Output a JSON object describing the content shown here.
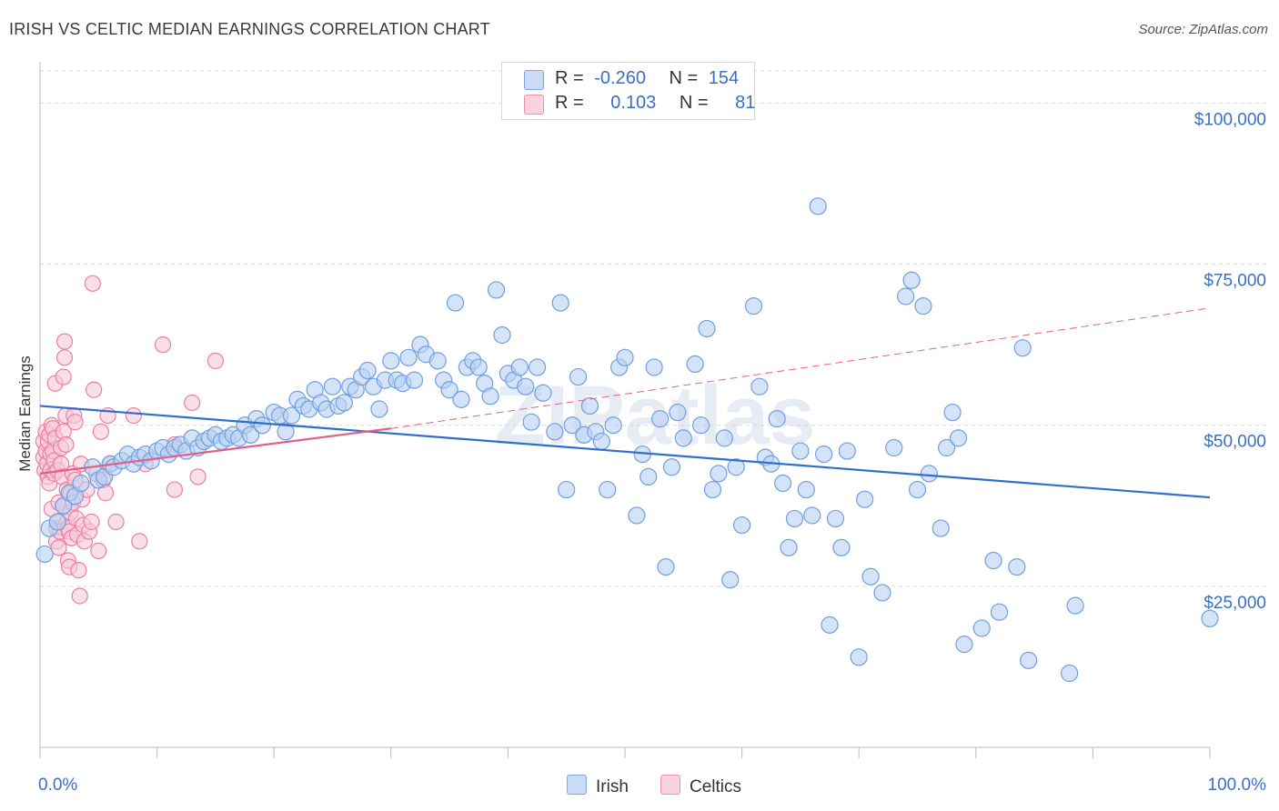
{
  "title": "IRISH VS CELTIC MEDIAN EARNINGS CORRELATION CHART",
  "source": "Source: ZipAtlas.com",
  "watermark": "ZIPatlas",
  "colors": {
    "irish": "#6f9fe0",
    "irish_fill": "#b8d0f2",
    "irish_line": "#2e6fcc",
    "celtics": "#ec7fa3",
    "celtics_fill": "#f9c9d8",
    "celtics_line": "#e0608c",
    "tick_text": "#3b6fc4",
    "grid": "#d9d9d9"
  },
  "legend": {
    "rows": [
      {
        "r_label": "R =",
        "r_value": "-0.260",
        "n_label": "N =",
        "n_value": "154"
      },
      {
        "r_label": "R =",
        "r_value": "0.103",
        "n_label": "N =",
        "n_value": "81"
      }
    ]
  },
  "bottom_legend": {
    "irish": "Irish",
    "celtics": "Celtics"
  },
  "chart_data": {
    "type": "scatter",
    "title": "IRISH VS CELTIC MEDIAN EARNINGS CORRELATION CHART",
    "xlabel": "",
    "ylabel": "Median Earnings",
    "xlim": [
      0,
      100
    ],
    "ylim": [
      0,
      105000
    ],
    "x_tick_labels": [
      "0.0%",
      "100.0%"
    ],
    "y_ticks": [
      25000,
      50000,
      75000,
      100000
    ],
    "y_tick_labels": [
      "$25,000",
      "$50,000",
      "$75,000",
      "$100,000"
    ],
    "grid": true,
    "legend_position": "top-center",
    "series": [
      {
        "name": "Irish",
        "r": -0.26,
        "n": 154,
        "trend": {
          "x": [
            0,
            100
          ],
          "y": [
            53000,
            38800
          ]
        },
        "points": [
          [
            0.4,
            30000
          ],
          [
            0.8,
            34000
          ],
          [
            1.5,
            35000
          ],
          [
            2.0,
            37500
          ],
          [
            2.5,
            39500
          ],
          [
            3.0,
            39000
          ],
          [
            3.5,
            41000
          ],
          [
            4.5,
            43500
          ],
          [
            5.0,
            41500
          ],
          [
            5.5,
            42000
          ],
          [
            6.0,
            44000
          ],
          [
            6.3,
            43500
          ],
          [
            7.0,
            44500
          ],
          [
            7.5,
            45500
          ],
          [
            8.0,
            44000
          ],
          [
            8.5,
            45000
          ],
          [
            9.0,
            45500
          ],
          [
            9.5,
            44500
          ],
          [
            10.0,
            46000
          ],
          [
            10.5,
            46500
          ],
          [
            11.0,
            45500
          ],
          [
            11.5,
            46500
          ],
          [
            12.0,
            47000
          ],
          [
            12.5,
            46000
          ],
          [
            13.0,
            48000
          ],
          [
            13.5,
            46500
          ],
          [
            14.0,
            47500
          ],
          [
            14.5,
            48000
          ],
          [
            15.0,
            48500
          ],
          [
            15.5,
            47500
          ],
          [
            16.0,
            48000
          ],
          [
            16.5,
            48500
          ],
          [
            17.0,
            48000
          ],
          [
            17.5,
            50000
          ],
          [
            18.0,
            48500
          ],
          [
            18.5,
            51000
          ],
          [
            19.0,
            50000
          ],
          [
            20.0,
            52000
          ],
          [
            20.5,
            51500
          ],
          [
            21.0,
            49000
          ],
          [
            21.5,
            51500
          ],
          [
            22.0,
            54000
          ],
          [
            22.5,
            53000
          ],
          [
            23.0,
            52500
          ],
          [
            23.5,
            55500
          ],
          [
            24.0,
            53500
          ],
          [
            24.5,
            52500
          ],
          [
            25.0,
            56000
          ],
          [
            25.5,
            53000
          ],
          [
            26.0,
            53500
          ],
          [
            26.5,
            56000
          ],
          [
            27.0,
            55500
          ],
          [
            27.5,
            57500
          ],
          [
            28.0,
            58500
          ],
          [
            28.5,
            56000
          ],
          [
            29.0,
            52500
          ],
          [
            29.5,
            57000
          ],
          [
            30.0,
            60000
          ],
          [
            30.5,
            57000
          ],
          [
            31.0,
            56500
          ],
          [
            31.5,
            60500
          ],
          [
            32.0,
            57000
          ],
          [
            32.5,
            62500
          ],
          [
            33.0,
            61000
          ],
          [
            34.0,
            60000
          ],
          [
            34.5,
            57000
          ],
          [
            35.0,
            55500
          ],
          [
            35.5,
            69000
          ],
          [
            36.0,
            54000
          ],
          [
            36.5,
            59000
          ],
          [
            37.0,
            60000
          ],
          [
            37.5,
            59000
          ],
          [
            38.0,
            56500
          ],
          [
            38.5,
            54500
          ],
          [
            39.0,
            71000
          ],
          [
            39.5,
            64000
          ],
          [
            40.0,
            58000
          ],
          [
            40.5,
            57000
          ],
          [
            41.0,
            59000
          ],
          [
            41.5,
            56000
          ],
          [
            42.0,
            50500
          ],
          [
            42.5,
            59000
          ],
          [
            43.0,
            55000
          ],
          [
            44.0,
            49000
          ],
          [
            44.5,
            69000
          ],
          [
            45.0,
            40000
          ],
          [
            45.5,
            50000
          ],
          [
            46.0,
            57500
          ],
          [
            46.5,
            48500
          ],
          [
            47.0,
            53000
          ],
          [
            47.5,
            49000
          ],
          [
            48.0,
            47500
          ],
          [
            48.5,
            40000
          ],
          [
            49.0,
            50000
          ],
          [
            49.5,
            59000
          ],
          [
            50.0,
            60500
          ],
          [
            51.0,
            36000
          ],
          [
            51.5,
            45500
          ],
          [
            52.0,
            42000
          ],
          [
            52.5,
            59000
          ],
          [
            53.0,
            51000
          ],
          [
            53.5,
            28000
          ],
          [
            54.0,
            43500
          ],
          [
            54.5,
            52000
          ],
          [
            55.0,
            48000
          ],
          [
            56.0,
            59500
          ],
          [
            56.5,
            50000
          ],
          [
            57.0,
            65000
          ],
          [
            57.5,
            40000
          ],
          [
            58.0,
            42500
          ],
          [
            58.5,
            48000
          ],
          [
            59.0,
            26000
          ],
          [
            59.5,
            43500
          ],
          [
            60.0,
            34500
          ],
          [
            61.0,
            68500
          ],
          [
            61.5,
            56000
          ],
          [
            62.0,
            45000
          ],
          [
            62.5,
            44000
          ],
          [
            63.0,
            51000
          ],
          [
            63.5,
            41000
          ],
          [
            64.0,
            31000
          ],
          [
            64.5,
            35500
          ],
          [
            65.0,
            46000
          ],
          [
            65.5,
            40000
          ],
          [
            66.0,
            36000
          ],
          [
            66.5,
            84000
          ],
          [
            67.0,
            45500
          ],
          [
            67.5,
            19000
          ],
          [
            68.0,
            35500
          ],
          [
            68.5,
            31000
          ],
          [
            69.0,
            46000
          ],
          [
            70.0,
            14000
          ],
          [
            70.5,
            38500
          ],
          [
            71.0,
            26500
          ],
          [
            72.0,
            24000
          ],
          [
            73.0,
            46500
          ],
          [
            74.0,
            70000
          ],
          [
            74.5,
            72500
          ],
          [
            75.0,
            40000
          ],
          [
            75.5,
            68500
          ],
          [
            76.0,
            42500
          ],
          [
            77.0,
            34000
          ],
          [
            77.5,
            46500
          ],
          [
            78.0,
            52000
          ],
          [
            78.5,
            48000
          ],
          [
            79.0,
            16000
          ],
          [
            80.5,
            18500
          ],
          [
            81.5,
            29000
          ],
          [
            82.0,
            21000
          ],
          [
            83.5,
            28000
          ],
          [
            84.0,
            62000
          ],
          [
            84.5,
            13500
          ],
          [
            88.0,
            11500
          ],
          [
            88.5,
            22000
          ],
          [
            100.0,
            20000
          ]
        ]
      },
      {
        "name": "Celtics",
        "r": 0.103,
        "n": 81,
        "trend": {
          "x": [
            0,
            30,
            100
          ],
          "y": [
            42500,
            49500,
            68200
          ]
        },
        "points": [
          [
            0.3,
            45000
          ],
          [
            0.3,
            47500
          ],
          [
            0.4,
            43000
          ],
          [
            0.5,
            49000
          ],
          [
            0.5,
            46000
          ],
          [
            0.6,
            44000
          ],
          [
            0.7,
            42000
          ],
          [
            0.7,
            47500
          ],
          [
            0.8,
            48500
          ],
          [
            0.8,
            41000
          ],
          [
            0.9,
            45500
          ],
          [
            0.9,
            43000
          ],
          [
            1.0,
            50000
          ],
          [
            1.0,
            37000
          ],
          [
            1.1,
            49500
          ],
          [
            1.1,
            46000
          ],
          [
            1.2,
            44500
          ],
          [
            1.2,
            42500
          ],
          [
            1.3,
            56500
          ],
          [
            1.3,
            48000
          ],
          [
            1.4,
            34000
          ],
          [
            1.4,
            32000
          ],
          [
            1.5,
            43000
          ],
          [
            1.5,
            35000
          ],
          [
            1.6,
            38000
          ],
          [
            1.6,
            31000
          ],
          [
            1.7,
            33500
          ],
          [
            1.8,
            46500
          ],
          [
            1.8,
            44000
          ],
          [
            1.9,
            42000
          ],
          [
            2.0,
            57500
          ],
          [
            2.0,
            49000
          ],
          [
            2.0,
            37500
          ],
          [
            2.1,
            63000
          ],
          [
            2.1,
            60500
          ],
          [
            2.2,
            51500
          ],
          [
            2.2,
            47000
          ],
          [
            2.3,
            40000
          ],
          [
            2.3,
            35000
          ],
          [
            2.4,
            34000
          ],
          [
            2.4,
            29000
          ],
          [
            2.5,
            33500
          ],
          [
            2.5,
            28000
          ],
          [
            2.6,
            39500
          ],
          [
            2.6,
            36500
          ],
          [
            2.7,
            32500
          ],
          [
            2.8,
            42500
          ],
          [
            2.8,
            38000
          ],
          [
            2.9,
            51500
          ],
          [
            3.0,
            50500
          ],
          [
            3.0,
            41500
          ],
          [
            3.1,
            35500
          ],
          [
            3.2,
            33000
          ],
          [
            3.3,
            27500
          ],
          [
            3.4,
            23500
          ],
          [
            3.5,
            44000
          ],
          [
            3.6,
            38500
          ],
          [
            3.7,
            34500
          ],
          [
            3.8,
            32000
          ],
          [
            4.0,
            40000
          ],
          [
            4.2,
            33500
          ],
          [
            4.4,
            35000
          ],
          [
            4.5,
            72000
          ],
          [
            4.6,
            55500
          ],
          [
            4.8,
            42500
          ],
          [
            5.0,
            30500
          ],
          [
            5.2,
            49000
          ],
          [
            5.4,
            41500
          ],
          [
            5.6,
            39500
          ],
          [
            5.8,
            51500
          ],
          [
            6.0,
            44000
          ],
          [
            6.5,
            35000
          ],
          [
            8.0,
            51500
          ],
          [
            8.5,
            32000
          ],
          [
            9.0,
            44000
          ],
          [
            10.5,
            62500
          ],
          [
            11.5,
            47000
          ],
          [
            11.5,
            40000
          ],
          [
            13.0,
            53500
          ],
          [
            13.5,
            42000
          ],
          [
            15.0,
            60000
          ]
        ]
      }
    ]
  }
}
